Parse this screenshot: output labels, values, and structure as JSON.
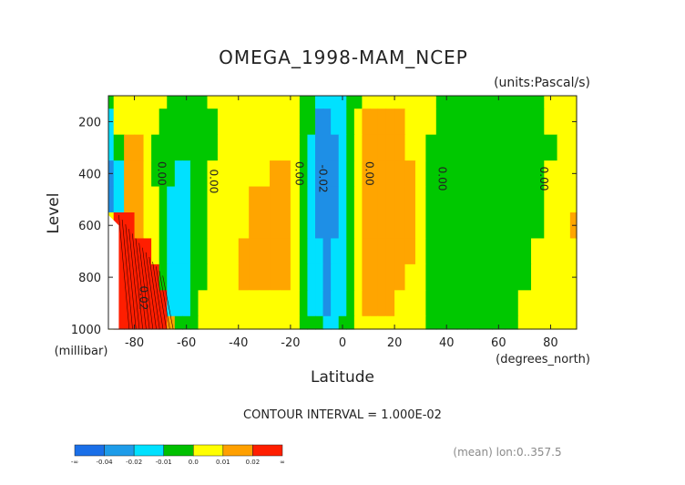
{
  "chart_data": {
    "type": "heatmap",
    "title": "OMEGA_1998-MAM_NCEP",
    "units": "(units:Pascal/s)",
    "xlabel": "Latitude",
    "x_unit": "(degrees_north)",
    "ylabel": "Level",
    "y_unit": "(millibar)",
    "xlim": [
      -90,
      90
    ],
    "ylim": [
      1000,
      100
    ],
    "x_ticks": [
      "-80",
      "-60",
      "-40",
      "-20",
      "0",
      "20",
      "40",
      "60",
      "80"
    ],
    "y_ticks": [
      "200",
      "400",
      "600",
      "800",
      "1000"
    ],
    "contour_interval": "CONTOUR INTERVAL = 1.000E-02",
    "footer_note": "(mean) lon:0..357.5",
    "contour_labels": [
      {
        "lat": -71,
        "level": 400,
        "text": "0.00"
      },
      {
        "lat": -51,
        "level": 430,
        "text": "0.00"
      },
      {
        "lat": -18,
        "level": 400,
        "text": "0.00"
      },
      {
        "lat": -9,
        "level": 420,
        "text": "-0.02"
      },
      {
        "lat": 9,
        "level": 400,
        "text": "0.00"
      },
      {
        "lat": 37,
        "level": 420,
        "text": "0.00"
      },
      {
        "lat": 76,
        "level": 420,
        "text": "0.00"
      },
      {
        "lat": -78,
        "level": 880,
        "text": "0.02"
      }
    ],
    "colorbar": {
      "labels": [
        "-∞",
        "-0.04",
        "-0.02",
        "-0.01",
        "0.0",
        "0.01",
        "0.02",
        "∞"
      ],
      "colors": [
        "#1a6fe8",
        "#1e9ce9",
        "#00e1ff",
        "#00c000",
        "#ffff00",
        "#ffa000",
        "#ff1e00"
      ]
    },
    "level_colors": {
      "lt_m002": "#1e8fe6",
      "m002_m001": "#00e1ff",
      "m001_0": "#00c800",
      "0_001": "#ffff00",
      "001_002": "#ffa500",
      "gt_002": "#ff1e00"
    },
    "field": {
      "description_of_grid": "omega values at sample latitudes (columns) and levels (rows)",
      "lats": [
        -90,
        -86,
        -82,
        -78,
        -75,
        -72,
        -69,
        -66,
        -63,
        -60,
        -57,
        -54,
        -50,
        -46,
        -42,
        -38,
        -34,
        -30,
        -26,
        -22,
        -18,
        -15,
        -12,
        -9,
        -6,
        -3,
        0,
        3,
        6,
        9,
        12,
        15,
        18,
        22,
        26,
        30,
        34,
        38,
        42,
        46,
        50,
        55,
        60,
        65,
        70,
        75,
        80,
        85,
        90
      ],
      "levels": [
        100,
        200,
        300,
        400,
        500,
        600,
        700,
        800,
        900,
        1000
      ],
      "values": [
        [
          -0.005,
          0.003,
          0.003,
          0.003,
          0.003,
          0.003,
          0.003,
          -0.004,
          -0.004,
          -0.004,
          -0.004,
          -0.004,
          0.003,
          0.003,
          0.003,
          0.003,
          0.003,
          0.003,
          0.003,
          0.003,
          0.003,
          -0.003,
          -0.005,
          -0.012,
          -0.012,
          -0.012,
          -0.012,
          -0.005,
          -0.004,
          0.003,
          0.003,
          0.003,
          0.003,
          0.003,
          0.003,
          0.003,
          0.003,
          -0.003,
          -0.003,
          -0.003,
          -0.003,
          -0.003,
          -0.003,
          -0.003,
          -0.003,
          -0.003,
          0.003,
          0.003,
          0.003
        ],
        [
          -0.012,
          0.004,
          0.004,
          0.003,
          0.003,
          0.002,
          -0.003,
          -0.004,
          -0.004,
          -0.004,
          -0.004,
          -0.004,
          -0.004,
          0.003,
          0.003,
          0.003,
          0.003,
          0.003,
          0.003,
          0.003,
          0.003,
          -0.003,
          -0.006,
          -0.022,
          -0.025,
          -0.014,
          -0.012,
          -0.004,
          0.003,
          0.012,
          0.012,
          0.012,
          0.012,
          0.012,
          0.003,
          0.003,
          0.003,
          -0.003,
          -0.003,
          -0.003,
          -0.003,
          -0.003,
          -0.003,
          -0.003,
          -0.003,
          -0.003,
          0.003,
          0.003,
          0.003
        ],
        [
          -0.014,
          -0.004,
          0.012,
          0.012,
          0.003,
          -0.002,
          -0.004,
          -0.004,
          -0.004,
          -0.004,
          -0.004,
          -0.004,
          -0.004,
          0.003,
          0.003,
          0.003,
          0.003,
          0.003,
          0.003,
          0.003,
          0.003,
          -0.003,
          -0.012,
          -0.025,
          -0.025,
          -0.025,
          -0.012,
          -0.004,
          0.003,
          0.012,
          0.012,
          0.012,
          0.012,
          0.012,
          0.003,
          0.003,
          -0.003,
          -0.003,
          -0.003,
          -0.003,
          -0.003,
          -0.003,
          -0.003,
          -0.003,
          -0.003,
          -0.003,
          -0.003,
          0.003,
          0.003
        ],
        [
          -0.022,
          -0.012,
          0.012,
          0.012,
          0.003,
          -0.003,
          -0.004,
          -0.004,
          -0.012,
          -0.012,
          -0.004,
          -0.004,
          0.003,
          0.003,
          0.003,
          0.003,
          0.003,
          0.003,
          0.012,
          0.012,
          0.003,
          -0.003,
          -0.012,
          -0.025,
          -0.025,
          -0.025,
          -0.012,
          -0.004,
          0.003,
          0.012,
          0.012,
          0.012,
          0.012,
          0.012,
          0.012,
          0.003,
          -0.003,
          -0.003,
          -0.003,
          -0.003,
          -0.003,
          -0.003,
          -0.003,
          -0.003,
          -0.003,
          -0.003,
          0.003,
          0.003,
          0.003
        ],
        [
          -0.022,
          -0.012,
          0.012,
          0.012,
          0.003,
          0.003,
          -0.004,
          -0.012,
          -0.012,
          -0.012,
          -0.004,
          -0.004,
          0.003,
          0.003,
          0.003,
          0.003,
          0.012,
          0.012,
          0.012,
          0.012,
          0.003,
          -0.003,
          -0.012,
          -0.025,
          -0.025,
          -0.025,
          -0.012,
          -0.004,
          0.003,
          0.012,
          0.012,
          0.012,
          0.012,
          0.012,
          0.012,
          0.003,
          -0.003,
          -0.003,
          -0.003,
          -0.003,
          -0.003,
          -0.003,
          -0.003,
          -0.003,
          -0.003,
          -0.003,
          0.003,
          0.003,
          0.003
        ],
        [
          0.003,
          0.025,
          0.025,
          0.012,
          0.003,
          0.003,
          -0.004,
          -0.012,
          -0.012,
          -0.012,
          -0.004,
          -0.004,
          0.003,
          0.003,
          0.003,
          0.003,
          0.012,
          0.012,
          0.012,
          0.012,
          0.003,
          -0.003,
          -0.012,
          -0.025,
          -0.025,
          -0.025,
          -0.012,
          -0.004,
          0.003,
          0.012,
          0.012,
          0.012,
          0.012,
          0.012,
          0.012,
          0.003,
          -0.003,
          -0.003,
          -0.003,
          -0.003,
          -0.003,
          -0.003,
          -0.003,
          -0.003,
          -0.003,
          -0.003,
          0.003,
          0.003,
          0.012
        ],
        [
          0.003,
          0.025,
          0.035,
          0.025,
          0.022,
          0.003,
          -0.004,
          -0.012,
          -0.012,
          -0.012,
          -0.004,
          -0.004,
          0.003,
          0.003,
          0.003,
          0.012,
          0.012,
          0.012,
          0.012,
          0.012,
          0.003,
          -0.003,
          -0.012,
          -0.012,
          -0.025,
          -0.012,
          -0.012,
          -0.004,
          0.003,
          0.012,
          0.012,
          0.012,
          0.012,
          0.012,
          0.012,
          0.003,
          -0.003,
          -0.003,
          -0.003,
          -0.003,
          -0.003,
          -0.003,
          -0.003,
          -0.003,
          -0.003,
          0.003,
          0.003,
          0.003,
          0.003
        ],
        [
          0.003,
          0.035,
          0.035,
          0.025,
          0.025,
          0.022,
          -0.004,
          -0.012,
          -0.012,
          -0.012,
          -0.004,
          -0.004,
          0.003,
          0.003,
          0.003,
          0.012,
          0.012,
          0.012,
          0.012,
          0.012,
          0.003,
          -0.003,
          -0.012,
          -0.012,
          -0.025,
          -0.012,
          -0.012,
          -0.004,
          0.003,
          0.012,
          0.012,
          0.012,
          0.012,
          0.012,
          0.003,
          0.003,
          -0.003,
          -0.003,
          -0.003,
          -0.003,
          -0.003,
          -0.003,
          -0.003,
          -0.003,
          -0.003,
          0.003,
          0.003,
          0.003,
          0.003
        ],
        [
          0.003,
          0.035,
          0.035,
          0.035,
          0.025,
          0.025,
          0.022,
          -0.012,
          -0.012,
          -0.012,
          -0.004,
          0.003,
          0.003,
          0.003,
          0.003,
          0.003,
          0.003,
          0.003,
          0.003,
          0.003,
          0.003,
          -0.003,
          -0.012,
          -0.012,
          -0.025,
          -0.012,
          -0.012,
          -0.004,
          0.003,
          0.012,
          0.012,
          0.012,
          0.012,
          0.003,
          0.003,
          0.003,
          -0.003,
          -0.003,
          -0.003,
          -0.003,
          -0.003,
          -0.003,
          -0.003,
          -0.003,
          0.003,
          0.003,
          0.003,
          0.003,
          0.003
        ],
        [
          0.003,
          0.035,
          0.035,
          0.035,
          0.035,
          0.025,
          0.025,
          0.012,
          -0.004,
          -0.004,
          -0.004,
          0.003,
          0.003,
          0.003,
          0.003,
          0.003,
          0.003,
          0.003,
          0.003,
          0.003,
          0.003,
          -0.003,
          -0.004,
          -0.004,
          -0.012,
          -0.012,
          -0.004,
          -0.004,
          0.003,
          0.003,
          0.003,
          0.003,
          0.003,
          0.003,
          0.003,
          0.003,
          -0.003,
          -0.003,
          -0.003,
          -0.003,
          -0.003,
          -0.003,
          -0.003,
          -0.003,
          0.003,
          0.003,
          0.003,
          0.003,
          0.003
        ]
      ]
    }
  }
}
